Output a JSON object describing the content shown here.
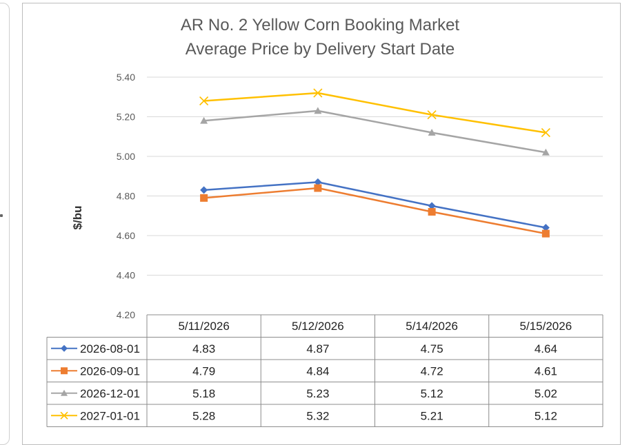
{
  "chart_data": {
    "type": "line",
    "title": [
      "AR No. 2 Yellow Corn Booking Market",
      "Average Price by Delivery Start Date"
    ],
    "ylabel": "$/bu",
    "xlabel": "",
    "categories": [
      "5/11/2026",
      "5/12/2026",
      "5/14/2026",
      "5/15/2026"
    ],
    "ylim": [
      4.2,
      5.4
    ],
    "yticks": [
      "4.20",
      "4.40",
      "4.60",
      "4.80",
      "5.00",
      "5.20",
      "5.40"
    ],
    "grid": true,
    "legend": "data-table",
    "series": [
      {
        "name": "2026-08-01",
        "color": "#4472C4",
        "marker": "diamond",
        "values": [
          4.83,
          4.87,
          4.75,
          4.64
        ],
        "labels": [
          "4.83",
          "4.87",
          "4.75",
          "4.64"
        ]
      },
      {
        "name": "2026-09-01",
        "color": "#ED7D31",
        "marker": "square",
        "values": [
          4.79,
          4.84,
          4.72,
          4.61
        ],
        "labels": [
          "4.79",
          "4.84",
          "4.72",
          "4.61"
        ]
      },
      {
        "name": "2026-12-01",
        "color": "#A5A5A5",
        "marker": "triangle",
        "values": [
          5.18,
          5.23,
          5.12,
          5.02
        ],
        "labels": [
          "5.18",
          "5.23",
          "5.12",
          "5.02"
        ]
      },
      {
        "name": "2027-01-01",
        "color": "#FFC000",
        "marker": "x",
        "values": [
          5.28,
          5.32,
          5.21,
          5.12
        ],
        "labels": [
          "5.28",
          "5.32",
          "5.21",
          "5.12"
        ]
      }
    ]
  }
}
